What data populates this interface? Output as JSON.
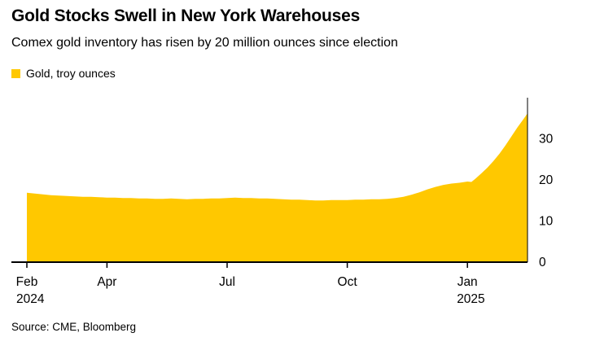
{
  "chart_data": {
    "type": "area",
    "title": "Gold Stocks Swell in New York Warehouses",
    "subtitle": "Comex gold inventory has risen by 20 million ounces since election",
    "source": "Source: CME, Bloomberg",
    "x_unit": "months since Feb 2024",
    "xlim": [
      0,
      12.5
    ],
    "ylim": [
      0,
      40
    ],
    "yticks": [
      0,
      10,
      20,
      30
    ],
    "xticks": [
      {
        "pos": 0,
        "label": "Feb",
        "sublabel": "2024"
      },
      {
        "pos": 2,
        "label": "Apr",
        "sublabel": ""
      },
      {
        "pos": 5,
        "label": "Jul",
        "sublabel": ""
      },
      {
        "pos": 8,
        "label": "Oct",
        "sublabel": ""
      },
      {
        "pos": 11,
        "label": "Jan",
        "sublabel": "2025"
      }
    ],
    "grid": false,
    "legend_position": "top-left",
    "axis_color": "#000000",
    "series": [
      {
        "name": "Gold, troy ounces",
        "color": "#FFC800",
        "points": [
          [
            0,
            16.9
          ],
          [
            0.2,
            16.7
          ],
          [
            0.4,
            16.5
          ],
          [
            0.6,
            16.3
          ],
          [
            0.8,
            16.2
          ],
          [
            1.0,
            16.1
          ],
          [
            1.2,
            16.0
          ],
          [
            1.4,
            15.9
          ],
          [
            1.6,
            15.9
          ],
          [
            1.8,
            15.8
          ],
          [
            2.0,
            15.7
          ],
          [
            2.2,
            15.7
          ],
          [
            2.4,
            15.6
          ],
          [
            2.6,
            15.6
          ],
          [
            2.8,
            15.5
          ],
          [
            3.0,
            15.5
          ],
          [
            3.2,
            15.4
          ],
          [
            3.4,
            15.4
          ],
          [
            3.6,
            15.5
          ],
          [
            3.8,
            15.4
          ],
          [
            4.0,
            15.3
          ],
          [
            4.2,
            15.4
          ],
          [
            4.4,
            15.4
          ],
          [
            4.6,
            15.5
          ],
          [
            4.8,
            15.5
          ],
          [
            5.0,
            15.6
          ],
          [
            5.2,
            15.7
          ],
          [
            5.4,
            15.6
          ],
          [
            5.6,
            15.6
          ],
          [
            5.8,
            15.5
          ],
          [
            6.0,
            15.5
          ],
          [
            6.2,
            15.4
          ],
          [
            6.4,
            15.3
          ],
          [
            6.6,
            15.2
          ],
          [
            6.8,
            15.2
          ],
          [
            7.0,
            15.1
          ],
          [
            7.2,
            15.0
          ],
          [
            7.4,
            15.0
          ],
          [
            7.6,
            15.1
          ],
          [
            7.8,
            15.1
          ],
          [
            8.0,
            15.1
          ],
          [
            8.2,
            15.2
          ],
          [
            8.4,
            15.2
          ],
          [
            8.6,
            15.3
          ],
          [
            8.8,
            15.3
          ],
          [
            9.0,
            15.4
          ],
          [
            9.2,
            15.6
          ],
          [
            9.4,
            15.9
          ],
          [
            9.6,
            16.4
          ],
          [
            9.8,
            17.0
          ],
          [
            10.0,
            17.7
          ],
          [
            10.2,
            18.3
          ],
          [
            10.4,
            18.8
          ],
          [
            10.6,
            19.1
          ],
          [
            10.8,
            19.3
          ],
          [
            11.0,
            19.6
          ],
          [
            11.1,
            19.5
          ],
          [
            11.2,
            20.3
          ],
          [
            11.35,
            21.6
          ],
          [
            11.5,
            23.0
          ],
          [
            11.65,
            24.6
          ],
          [
            11.8,
            26.4
          ],
          [
            11.95,
            28.4
          ],
          [
            12.1,
            30.6
          ],
          [
            12.25,
            32.8
          ],
          [
            12.4,
            34.8
          ],
          [
            12.5,
            36.2
          ]
        ]
      }
    ]
  }
}
